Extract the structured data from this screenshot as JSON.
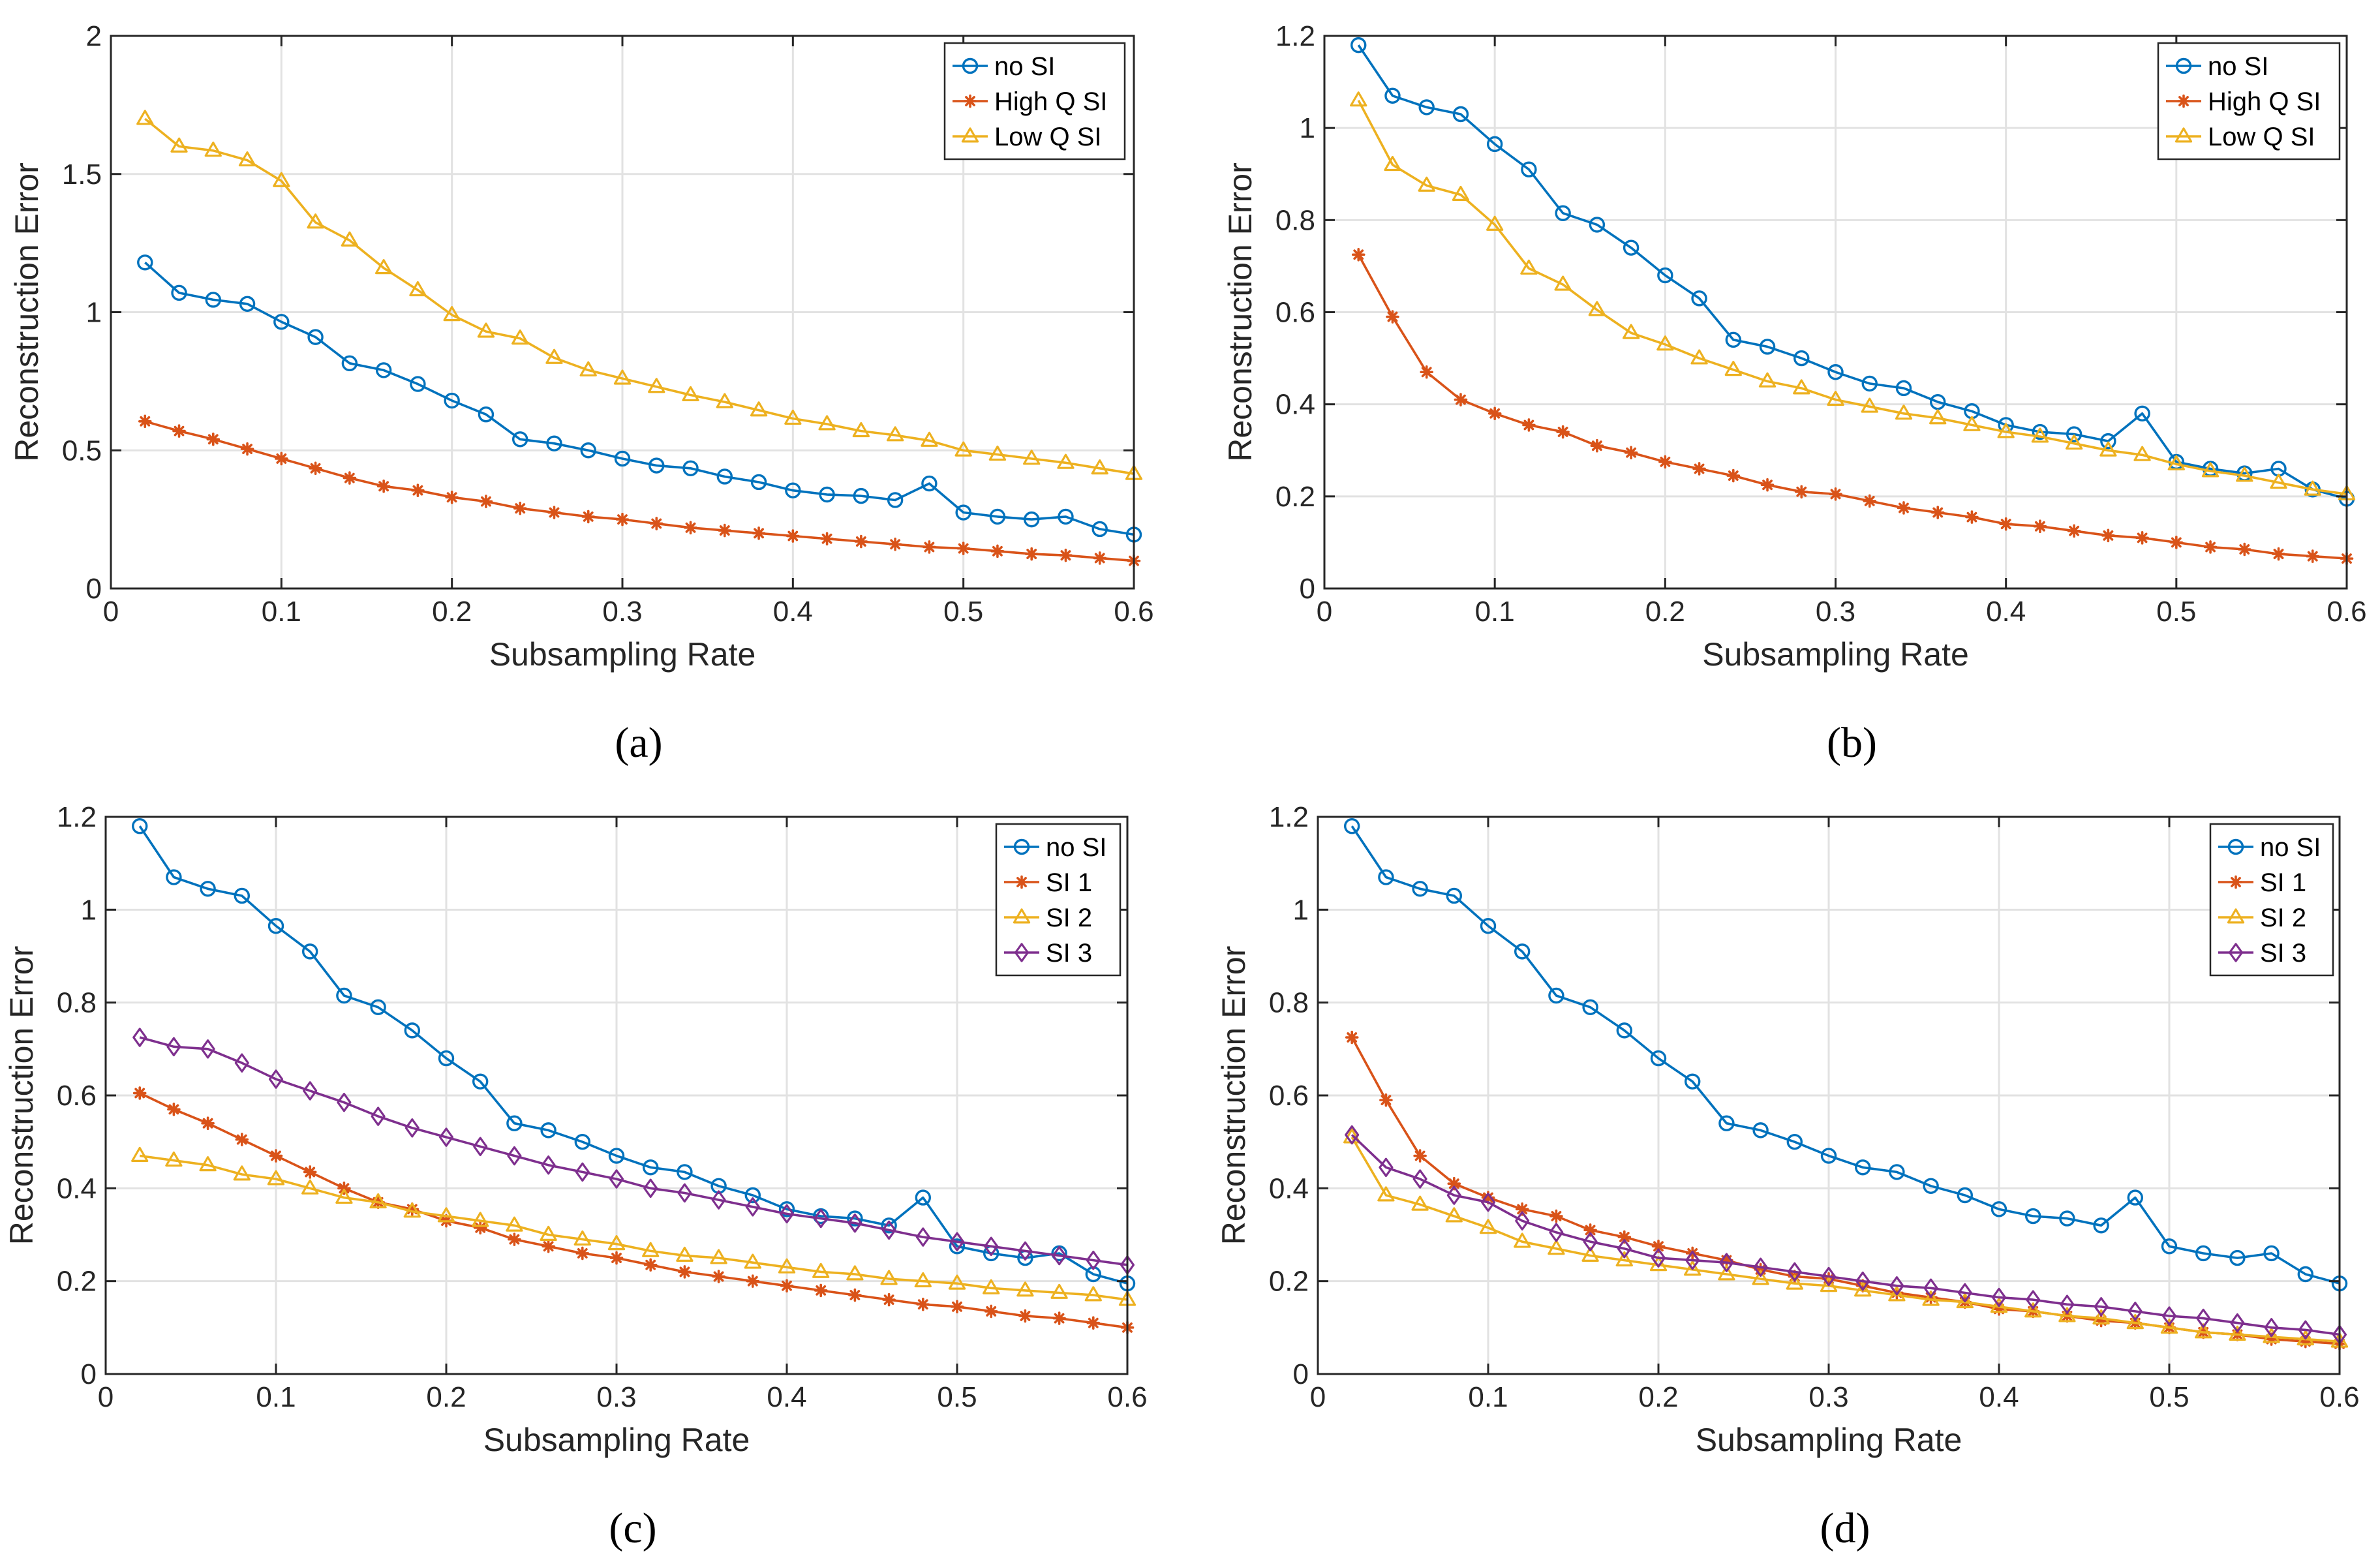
{
  "chart_data": [
    {
      "type": "line",
      "caption": "(a)",
      "xlabel": "Subsampling Rate",
      "ylabel": "Reconstruction Error",
      "xlim": [
        0,
        0.6
      ],
      "ylim": [
        0,
        2
      ],
      "xticks": [
        0,
        0.1,
        0.2,
        0.3,
        0.4,
        0.5,
        0.6
      ],
      "xtick_labels": [
        "0",
        "0.1",
        "0.2",
        "0.3",
        "0.4",
        "0.5",
        "0.6"
      ],
      "yticks": [
        0,
        0.5,
        1,
        1.5,
        2
      ],
      "ytick_labels": [
        "0",
        "0.5",
        "1",
        "1.5",
        "2"
      ],
      "grid": true,
      "legend": "top-right",
      "x": [
        0.02,
        0.04,
        0.06,
        0.08,
        0.1,
        0.12,
        0.14,
        0.16,
        0.18,
        0.2,
        0.22,
        0.24,
        0.26,
        0.28,
        0.3,
        0.32,
        0.34,
        0.36,
        0.38,
        0.4,
        0.42,
        0.44,
        0.46,
        0.48,
        0.5,
        0.52,
        0.54,
        0.56,
        0.58,
        0.6
      ],
      "series": [
        {
          "name": "no SI",
          "color": "#0072BD",
          "marker": "circle",
          "values": [
            1.18,
            1.07,
            1.045,
            1.03,
            0.965,
            0.91,
            0.815,
            0.79,
            0.74,
            0.68,
            0.63,
            0.54,
            0.525,
            0.5,
            0.47,
            0.445,
            0.435,
            0.405,
            0.385,
            0.355,
            0.34,
            0.335,
            0.32,
            0.38,
            0.275,
            0.26,
            0.25,
            0.26,
            0.215,
            0.195
          ]
        },
        {
          "name": "High Q SI",
          "color": "#D95319",
          "marker": "star",
          "values": [
            0.605,
            0.57,
            0.54,
            0.505,
            0.47,
            0.435,
            0.4,
            0.37,
            0.355,
            0.33,
            0.315,
            0.29,
            0.275,
            0.26,
            0.25,
            0.235,
            0.22,
            0.21,
            0.2,
            0.19,
            0.18,
            0.17,
            0.16,
            0.15,
            0.145,
            0.135,
            0.125,
            0.12,
            0.11,
            0.1
          ]
        },
        {
          "name": "Low Q SI",
          "color": "#EDB120",
          "marker": "triangle",
          "values": [
            1.7,
            1.6,
            1.585,
            1.55,
            1.475,
            1.325,
            1.26,
            1.16,
            1.08,
            0.99,
            0.93,
            0.905,
            0.835,
            0.79,
            0.76,
            0.73,
            0.7,
            0.675,
            0.645,
            0.615,
            0.595,
            0.57,
            0.555,
            0.535,
            0.5,
            0.485,
            0.47,
            0.455,
            0.435,
            0.415
          ]
        }
      ]
    },
    {
      "type": "line",
      "caption": "(b)",
      "xlabel": "Subsampling Rate",
      "ylabel": "Reconstruction Error",
      "xlim": [
        0,
        0.6
      ],
      "ylim": [
        0,
        1.2
      ],
      "xticks": [
        0,
        0.1,
        0.2,
        0.3,
        0.4,
        0.5,
        0.6
      ],
      "xtick_labels": [
        "0",
        "0.1",
        "0.2",
        "0.3",
        "0.4",
        "0.5",
        "0.6"
      ],
      "yticks": [
        0,
        0.2,
        0.4,
        0.6,
        0.8,
        1,
        1.2
      ],
      "ytick_labels": [
        "0",
        "0.2",
        "0.4",
        "0.6",
        "0.8",
        "1",
        "1.2"
      ],
      "grid": true,
      "legend": "top-right",
      "x": [
        0.02,
        0.04,
        0.06,
        0.08,
        0.1,
        0.12,
        0.14,
        0.16,
        0.18,
        0.2,
        0.22,
        0.24,
        0.26,
        0.28,
        0.3,
        0.32,
        0.34,
        0.36,
        0.38,
        0.4,
        0.42,
        0.44,
        0.46,
        0.48,
        0.5,
        0.52,
        0.54,
        0.56,
        0.58,
        0.6
      ],
      "series": [
        {
          "name": "no SI",
          "color": "#0072BD",
          "marker": "circle",
          "values": [
            1.18,
            1.07,
            1.045,
            1.03,
            0.965,
            0.91,
            0.815,
            0.79,
            0.74,
            0.68,
            0.63,
            0.54,
            0.525,
            0.5,
            0.47,
            0.445,
            0.435,
            0.405,
            0.385,
            0.355,
            0.34,
            0.335,
            0.32,
            0.38,
            0.275,
            0.26,
            0.25,
            0.26,
            0.215,
            0.195
          ]
        },
        {
          "name": "High Q SI",
          "color": "#D95319",
          "marker": "star",
          "values": [
            0.725,
            0.59,
            0.47,
            0.41,
            0.38,
            0.355,
            0.34,
            0.31,
            0.295,
            0.275,
            0.26,
            0.245,
            0.225,
            0.21,
            0.205,
            0.19,
            0.175,
            0.165,
            0.155,
            0.14,
            0.135,
            0.125,
            0.115,
            0.11,
            0.1,
            0.09,
            0.085,
            0.075,
            0.07,
            0.065
          ]
        },
        {
          "name": "Low Q SI",
          "color": "#EDB120",
          "marker": "triangle",
          "values": [
            1.06,
            0.92,
            0.875,
            0.855,
            0.79,
            0.695,
            0.66,
            0.605,
            0.555,
            0.53,
            0.5,
            0.475,
            0.45,
            0.435,
            0.41,
            0.395,
            0.38,
            0.37,
            0.355,
            0.34,
            0.33,
            0.315,
            0.3,
            0.29,
            0.27,
            0.255,
            0.245,
            0.23,
            0.215,
            0.205
          ]
        }
      ]
    },
    {
      "type": "line",
      "caption": "(c)",
      "xlabel": "Subsampling Rate",
      "ylabel": "Reconstruction Error",
      "xlim": [
        0,
        0.6
      ],
      "ylim": [
        0,
        1.2
      ],
      "xticks": [
        0,
        0.1,
        0.2,
        0.3,
        0.4,
        0.5,
        0.6
      ],
      "xtick_labels": [
        "0",
        "0.1",
        "0.2",
        "0.3",
        "0.4",
        "0.5",
        "0.6"
      ],
      "yticks": [
        0,
        0.2,
        0.4,
        0.6,
        0.8,
        1,
        1.2
      ],
      "ytick_labels": [
        "0",
        "0.2",
        "0.4",
        "0.6",
        "0.8",
        "1",
        "1.2"
      ],
      "grid": true,
      "legend": "top-right",
      "x": [
        0.02,
        0.04,
        0.06,
        0.08,
        0.1,
        0.12,
        0.14,
        0.16,
        0.18,
        0.2,
        0.22,
        0.24,
        0.26,
        0.28,
        0.3,
        0.32,
        0.34,
        0.36,
        0.38,
        0.4,
        0.42,
        0.44,
        0.46,
        0.48,
        0.5,
        0.52,
        0.54,
        0.56,
        0.58,
        0.6
      ],
      "series": [
        {
          "name": "no SI",
          "color": "#0072BD",
          "marker": "circle",
          "values": [
            1.18,
            1.07,
            1.045,
            1.03,
            0.965,
            0.91,
            0.815,
            0.79,
            0.74,
            0.68,
            0.63,
            0.54,
            0.525,
            0.5,
            0.47,
            0.445,
            0.435,
            0.405,
            0.385,
            0.355,
            0.34,
            0.335,
            0.32,
            0.38,
            0.275,
            0.26,
            0.25,
            0.26,
            0.215,
            0.195
          ]
        },
        {
          "name": "SI 1",
          "color": "#D95319",
          "marker": "star",
          "values": [
            0.605,
            0.57,
            0.54,
            0.505,
            0.47,
            0.435,
            0.4,
            0.37,
            0.355,
            0.33,
            0.315,
            0.29,
            0.275,
            0.26,
            0.25,
            0.235,
            0.22,
            0.21,
            0.2,
            0.19,
            0.18,
            0.17,
            0.16,
            0.15,
            0.145,
            0.135,
            0.125,
            0.12,
            0.11,
            0.1
          ]
        },
        {
          "name": "SI 2",
          "color": "#EDB120",
          "marker": "triangle",
          "values": [
            0.47,
            0.46,
            0.45,
            0.43,
            0.42,
            0.4,
            0.38,
            0.37,
            0.35,
            0.34,
            0.33,
            0.32,
            0.3,
            0.29,
            0.28,
            0.265,
            0.255,
            0.25,
            0.24,
            0.23,
            0.22,
            0.215,
            0.205,
            0.2,
            0.195,
            0.185,
            0.18,
            0.175,
            0.17,
            0.16
          ]
        },
        {
          "name": "SI 3",
          "color": "#7E2F8E",
          "marker": "diamond",
          "values": [
            0.725,
            0.705,
            0.7,
            0.67,
            0.635,
            0.61,
            0.585,
            0.555,
            0.53,
            0.51,
            0.49,
            0.47,
            0.45,
            0.435,
            0.42,
            0.4,
            0.39,
            0.375,
            0.36,
            0.345,
            0.335,
            0.325,
            0.31,
            0.295,
            0.285,
            0.275,
            0.265,
            0.255,
            0.245,
            0.235
          ]
        }
      ]
    },
    {
      "type": "line",
      "caption": "(d)",
      "xlabel": "Subsampling Rate",
      "ylabel": "Reconstruction Error",
      "xlim": [
        0,
        0.6
      ],
      "ylim": [
        0,
        1.2
      ],
      "xticks": [
        0,
        0.1,
        0.2,
        0.3,
        0.4,
        0.5,
        0.6
      ],
      "xtick_labels": [
        "0",
        "0.1",
        "0.2",
        "0.3",
        "0.4",
        "0.5",
        "0.6"
      ],
      "yticks": [
        0,
        0.2,
        0.4,
        0.6,
        0.8,
        1,
        1.2
      ],
      "ytick_labels": [
        "0",
        "0.2",
        "0.4",
        "0.6",
        "0.8",
        "1",
        "1.2"
      ],
      "grid": true,
      "legend": "top-right",
      "x": [
        0.02,
        0.04,
        0.06,
        0.08,
        0.1,
        0.12,
        0.14,
        0.16,
        0.18,
        0.2,
        0.22,
        0.24,
        0.26,
        0.28,
        0.3,
        0.32,
        0.34,
        0.36,
        0.38,
        0.4,
        0.42,
        0.44,
        0.46,
        0.48,
        0.5,
        0.52,
        0.54,
        0.56,
        0.58,
        0.6
      ],
      "series": [
        {
          "name": "no SI",
          "color": "#0072BD",
          "marker": "circle",
          "values": [
            1.18,
            1.07,
            1.045,
            1.03,
            0.965,
            0.91,
            0.815,
            0.79,
            0.74,
            0.68,
            0.63,
            0.54,
            0.525,
            0.5,
            0.47,
            0.445,
            0.435,
            0.405,
            0.385,
            0.355,
            0.34,
            0.335,
            0.32,
            0.38,
            0.275,
            0.26,
            0.25,
            0.26,
            0.215,
            0.195
          ]
        },
        {
          "name": "SI 1",
          "color": "#D95319",
          "marker": "star",
          "values": [
            0.725,
            0.59,
            0.47,
            0.41,
            0.38,
            0.355,
            0.34,
            0.31,
            0.295,
            0.275,
            0.26,
            0.245,
            0.225,
            0.21,
            0.205,
            0.19,
            0.175,
            0.165,
            0.155,
            0.14,
            0.135,
            0.125,
            0.115,
            0.11,
            0.1,
            0.09,
            0.085,
            0.075,
            0.07,
            0.065
          ]
        },
        {
          "name": "SI 2",
          "color": "#EDB120",
          "marker": "triangle",
          "values": [
            0.51,
            0.385,
            0.365,
            0.34,
            0.315,
            0.285,
            0.27,
            0.255,
            0.245,
            0.235,
            0.225,
            0.215,
            0.205,
            0.195,
            0.19,
            0.18,
            0.17,
            0.16,
            0.155,
            0.145,
            0.135,
            0.125,
            0.12,
            0.11,
            0.1,
            0.09,
            0.085,
            0.08,
            0.075,
            0.07
          ]
        },
        {
          "name": "SI 3",
          "color": "#7E2F8E",
          "marker": "diamond",
          "values": [
            0.515,
            0.445,
            0.42,
            0.385,
            0.37,
            0.33,
            0.305,
            0.285,
            0.27,
            0.25,
            0.245,
            0.24,
            0.23,
            0.22,
            0.21,
            0.2,
            0.19,
            0.185,
            0.175,
            0.165,
            0.16,
            0.15,
            0.145,
            0.135,
            0.125,
            0.12,
            0.11,
            0.1,
            0.095,
            0.085
          ]
        }
      ]
    }
  ]
}
